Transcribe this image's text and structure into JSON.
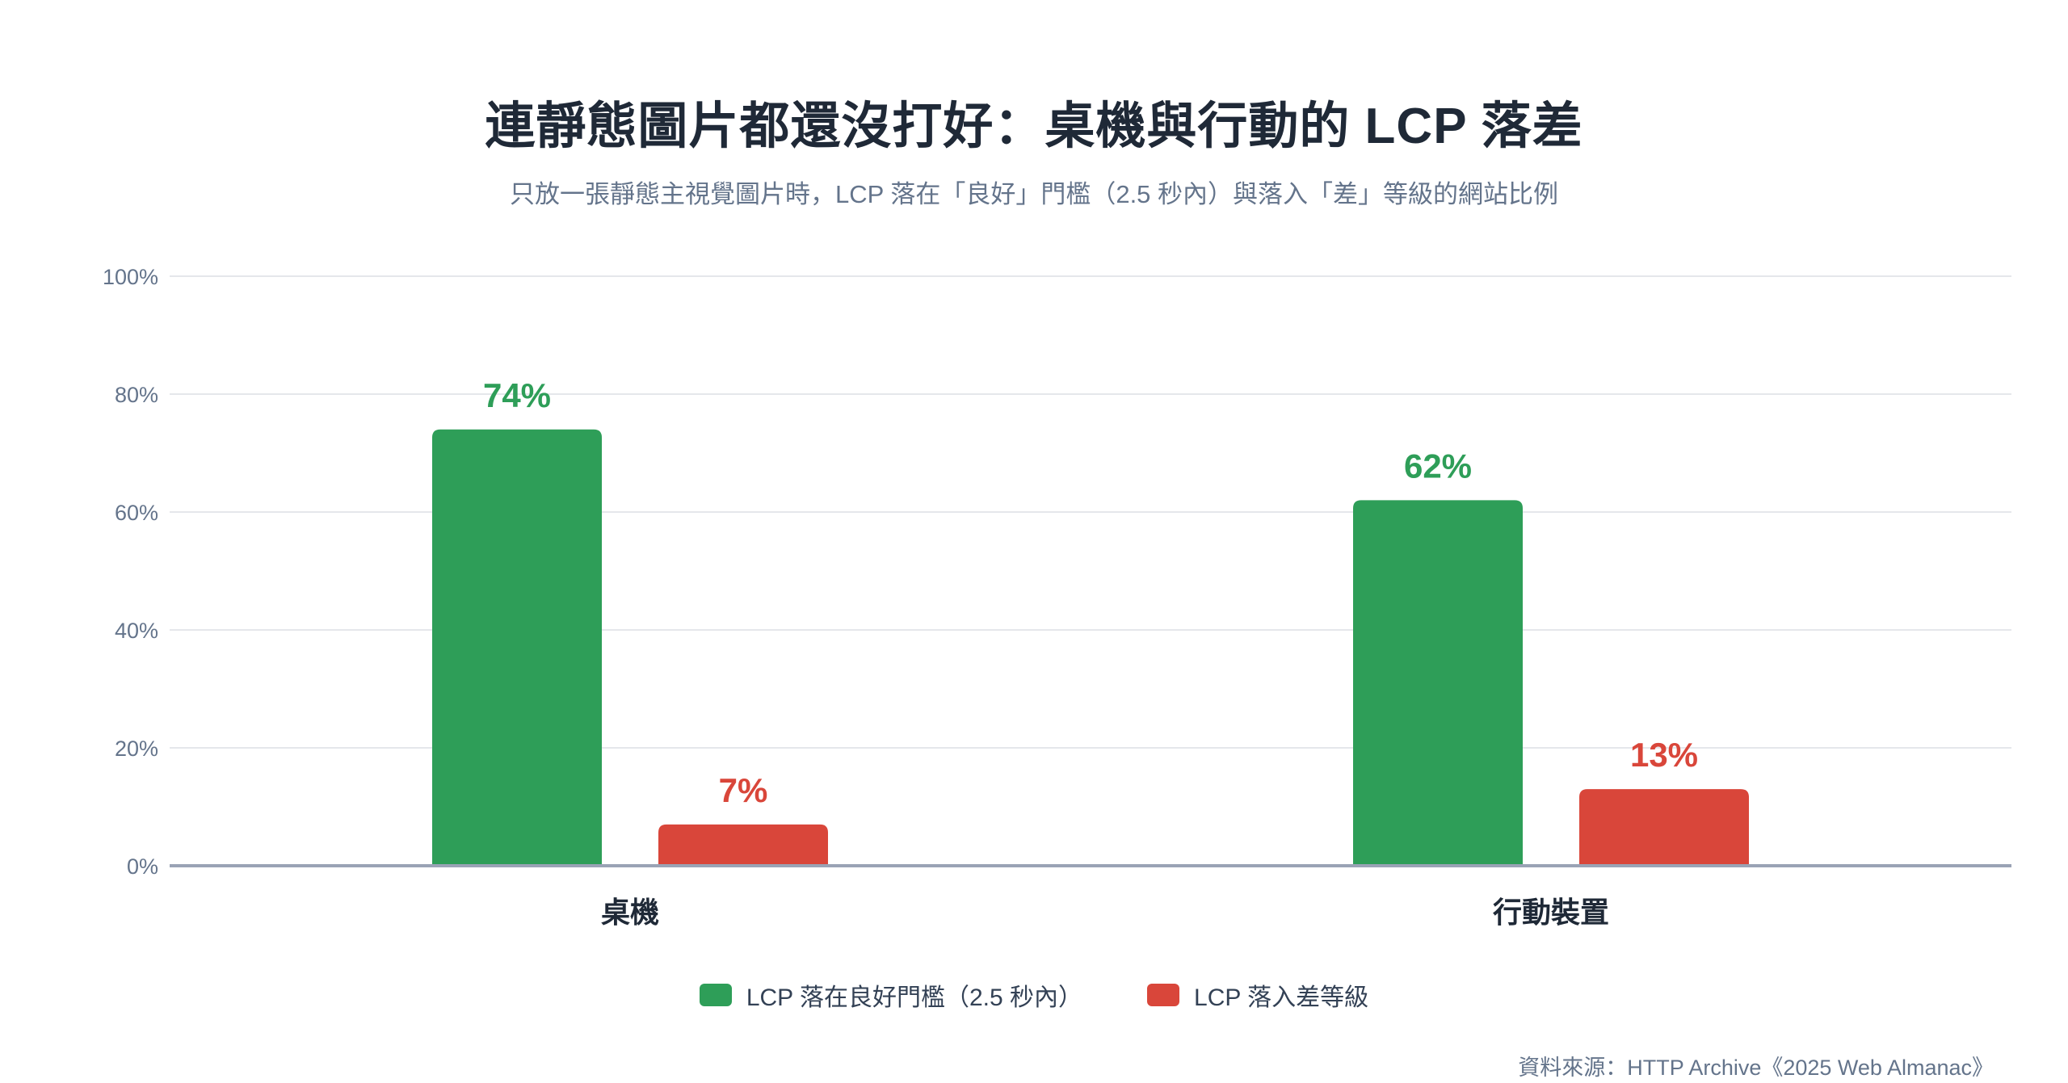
{
  "title": "連靜態圖片都還沒打好：桌機與行動的 LCP 落差",
  "subtitle": "只放一張靜態主視覺圖片時，LCP 落在「良好」門檻（2.5 秒內）與落入「差」等級的網站比例",
  "source": "資料來源：HTTP Archive《2025 Web Almanac》",
  "colors": {
    "good": "#2e9e58",
    "poor": "#d9463a",
    "grid": "#e5e7eb",
    "axis": "#9aa3b5"
  },
  "chart_data": {
    "type": "bar",
    "categories": [
      "桌機",
      "行動裝置"
    ],
    "series": [
      {
        "name": "LCP 落在良好門檻（2.5 秒內）",
        "values": [
          74,
          62
        ],
        "labels": [
          "74%",
          "62%"
        ]
      },
      {
        "name": "LCP 落入差等級",
        "values": [
          7,
          13
        ],
        "labels": [
          "7%",
          "13%"
        ]
      }
    ],
    "ylim": [
      0,
      100
    ],
    "yticks": [
      "0%",
      "20%",
      "40%",
      "60%",
      "80%",
      "100%"
    ],
    "ytick_values": [
      0,
      20,
      40,
      60,
      80,
      100
    ],
    "grid": true,
    "legend": "bottom-center"
  }
}
